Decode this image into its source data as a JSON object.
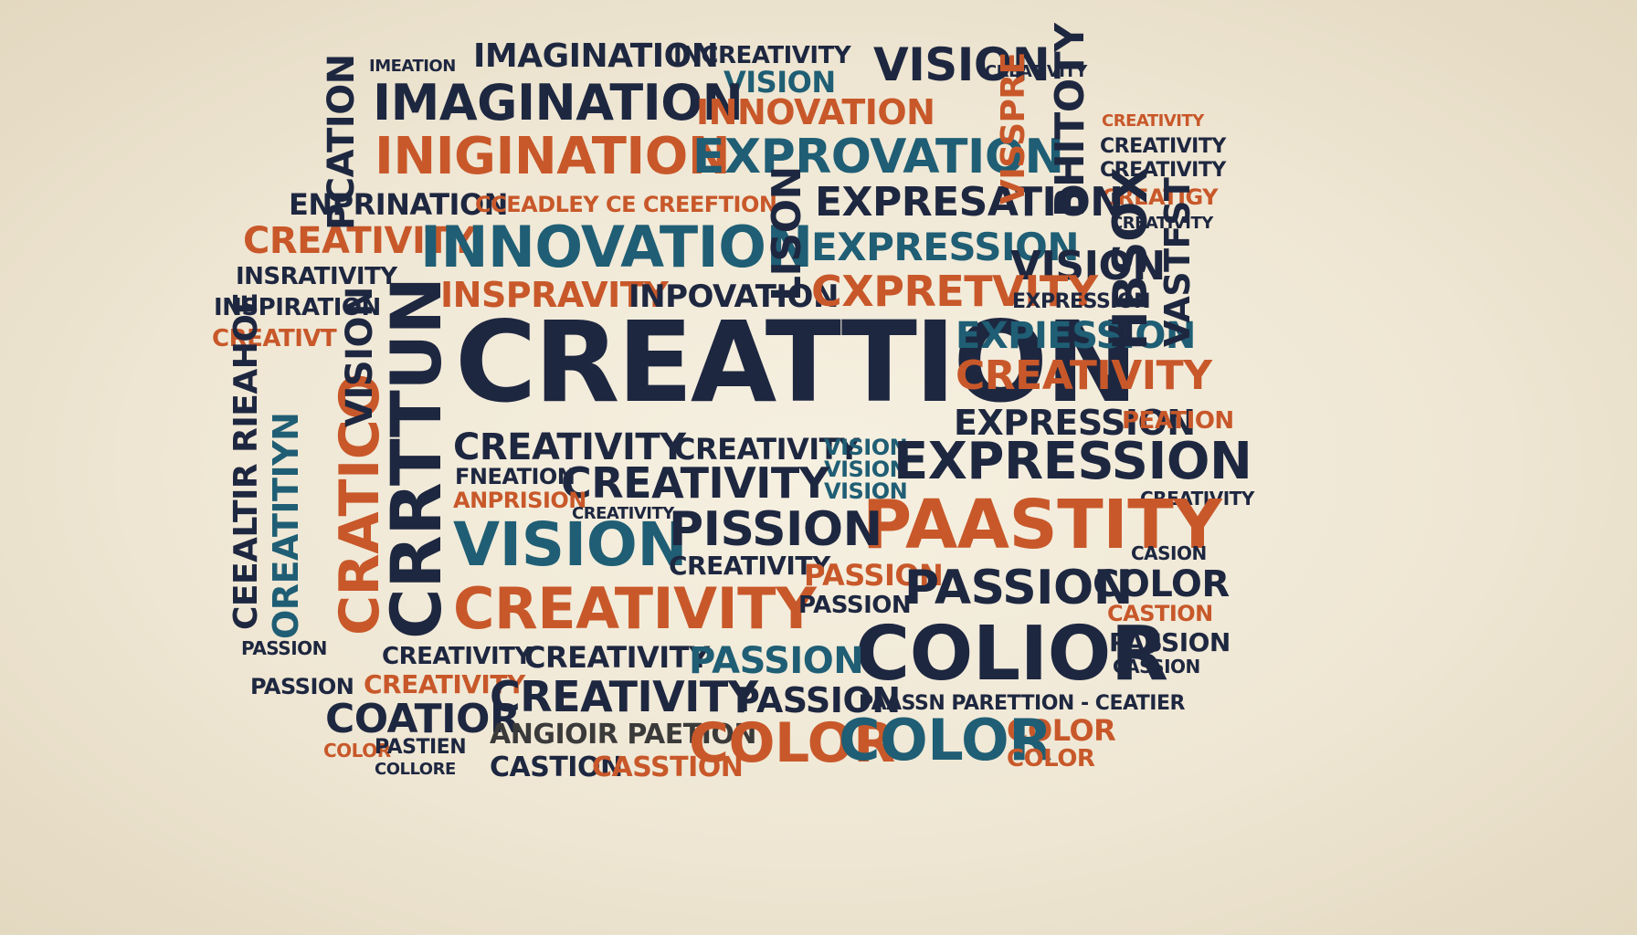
{
  "palette": {
    "background": "#f3ecdc",
    "navy": "#1e2740",
    "orange": "#c8582a",
    "teal": "#1f5e74"
  },
  "words": [
    {
      "text": "CREATTION",
      "color": "navy"
    },
    {
      "text": "IMAGINATION",
      "color": "navy"
    },
    {
      "text": "IMAGINATION",
      "color": "navy"
    },
    {
      "text": "INCREATIVITY",
      "color": "navy"
    },
    {
      "text": "VISION",
      "color": "teal"
    },
    {
      "text": "VISION",
      "color": "navy"
    },
    {
      "text": "CREATIVITY",
      "color": "navy"
    },
    {
      "text": "IMEATION",
      "color": "navy"
    },
    {
      "text": "INNOVATION",
      "color": "orange"
    },
    {
      "text": "INIGINATION",
      "color": "orange"
    },
    {
      "text": "EXPROVATION",
      "color": "teal"
    },
    {
      "text": "ENPRINATION",
      "color": "navy"
    },
    {
      "text": "CCEADLEY CE CREEFTION",
      "color": "orange"
    },
    {
      "text": "EXPRESATION",
      "color": "navy"
    },
    {
      "text": "CREATIVITY",
      "color": "orange"
    },
    {
      "text": "INNOVATION",
      "color": "teal"
    },
    {
      "text": "EXPRESSION",
      "color": "teal"
    },
    {
      "text": "INSPRAVITY",
      "color": "orange"
    },
    {
      "text": "INPOVATION",
      "color": "navy"
    },
    {
      "text": "CXPRETVITY",
      "color": "orange"
    },
    {
      "text": "VISION",
      "color": "navy"
    },
    {
      "text": "EXPRESSION",
      "color": "navy"
    },
    {
      "text": "EXPIESSION",
      "color": "teal"
    },
    {
      "text": "CREATIVITY",
      "color": "orange"
    },
    {
      "text": "EXPRESSION",
      "color": "navy"
    },
    {
      "text": "PEATION",
      "color": "orange"
    },
    {
      "text": "CREATIVITY",
      "color": "navy"
    },
    {
      "text": "CREATIVITY",
      "color": "navy"
    },
    {
      "text": "VISION",
      "color": "teal"
    },
    {
      "text": "VISION",
      "color": "teal"
    },
    {
      "text": "VISION",
      "color": "teal"
    },
    {
      "text": "EXPRESSION",
      "color": "navy"
    },
    {
      "text": "CREATIVITY",
      "color": "navy"
    },
    {
      "text": "FNEATION",
      "color": "navy"
    },
    {
      "text": "ANPRISION",
      "color": "orange"
    },
    {
      "text": "CREATIVITY",
      "color": "navy"
    },
    {
      "text": "VISION",
      "color": "teal"
    },
    {
      "text": "PISSION",
      "color": "navy"
    },
    {
      "text": "PAASTITY",
      "color": "orange"
    },
    {
      "text": "CREATIVITY",
      "color": "navy"
    },
    {
      "text": "CREATIVITY",
      "color": "orange"
    },
    {
      "text": "PASSION",
      "color": "orange"
    },
    {
      "text": "PASSION",
      "color": "navy"
    },
    {
      "text": "PASSION",
      "color": "navy"
    },
    {
      "text": "COLOR",
      "color": "navy"
    },
    {
      "text": "COLIOR",
      "color": "navy"
    },
    {
      "text": "CREATIVITY",
      "color": "navy"
    },
    {
      "text": "CREATIVITY",
      "color": "orange"
    },
    {
      "text": "PASSION",
      "color": "teal"
    },
    {
      "text": "CREATIVITY",
      "color": "navy"
    },
    {
      "text": "PASSION",
      "color": "navy"
    },
    {
      "text": "COATIOR",
      "color": "navy"
    },
    {
      "text": "PASSION",
      "color": "navy"
    },
    {
      "text": "PASSION",
      "color": "navy"
    },
    {
      "text": "PAASSN PARETTION - CEATIER",
      "color": "navy"
    },
    {
      "text": "ANGIOIR PAETION",
      "color": "mid"
    },
    {
      "text": "CASTION",
      "color": "navy"
    },
    {
      "text": "CASSTION",
      "color": "orange"
    },
    {
      "text": "COLOR",
      "color": "orange"
    },
    {
      "text": "COLOR",
      "color": "teal"
    },
    {
      "text": "COLOR",
      "color": "orange"
    },
    {
      "text": "COLOR",
      "color": "orange"
    },
    {
      "text": "CREATIVITY",
      "color": "navy"
    },
    {
      "text": "CREATIVITY",
      "color": "navy"
    },
    {
      "text": "CREATIVITY",
      "color": "navy"
    },
    {
      "text": "CREATIGY",
      "color": "orange"
    },
    {
      "text": "CREATIVT",
      "color": "orange"
    },
    {
      "text": "INSPIRATION",
      "color": "navy"
    },
    {
      "text": "INSRATIVITY",
      "color": "navy"
    },
    {
      "text": "PASSION",
      "color": "teal"
    },
    {
      "text": "CASION",
      "color": "navy"
    },
    {
      "text": "CASTION",
      "color": "orange"
    },
    {
      "text": "CASSION",
      "color": "navy"
    },
    {
      "text": "COLOR",
      "color": "orange"
    },
    {
      "text": "PASTIEN",
      "color": "navy"
    },
    {
      "text": "COLLORE",
      "color": "navy"
    },
    {
      "text": "CRATICO",
      "color": "orange"
    },
    {
      "text": "CRRTTUN",
      "color": "navy"
    },
    {
      "text": "VISION",
      "color": "navy"
    },
    {
      "text": "PCATION",
      "color": "navy"
    },
    {
      "text": "LISON",
      "color": "navy"
    },
    {
      "text": "VISSPRE",
      "color": "orange"
    },
    {
      "text": "BHITOTY",
      "color": "navy"
    },
    {
      "text": "HBSOX",
      "color": "navy"
    },
    {
      "text": "VASTFST",
      "color": "navy"
    },
    {
      "text": "OREATITIYN",
      "color": "teal"
    },
    {
      "text": "CEEALTIR RIEAHOE",
      "color": "navy"
    },
    {
      "text": "CREATIVITY",
      "color": "orange"
    },
    {
      "text": "CREATIVITY",
      "color": "navy"
    }
  ]
}
